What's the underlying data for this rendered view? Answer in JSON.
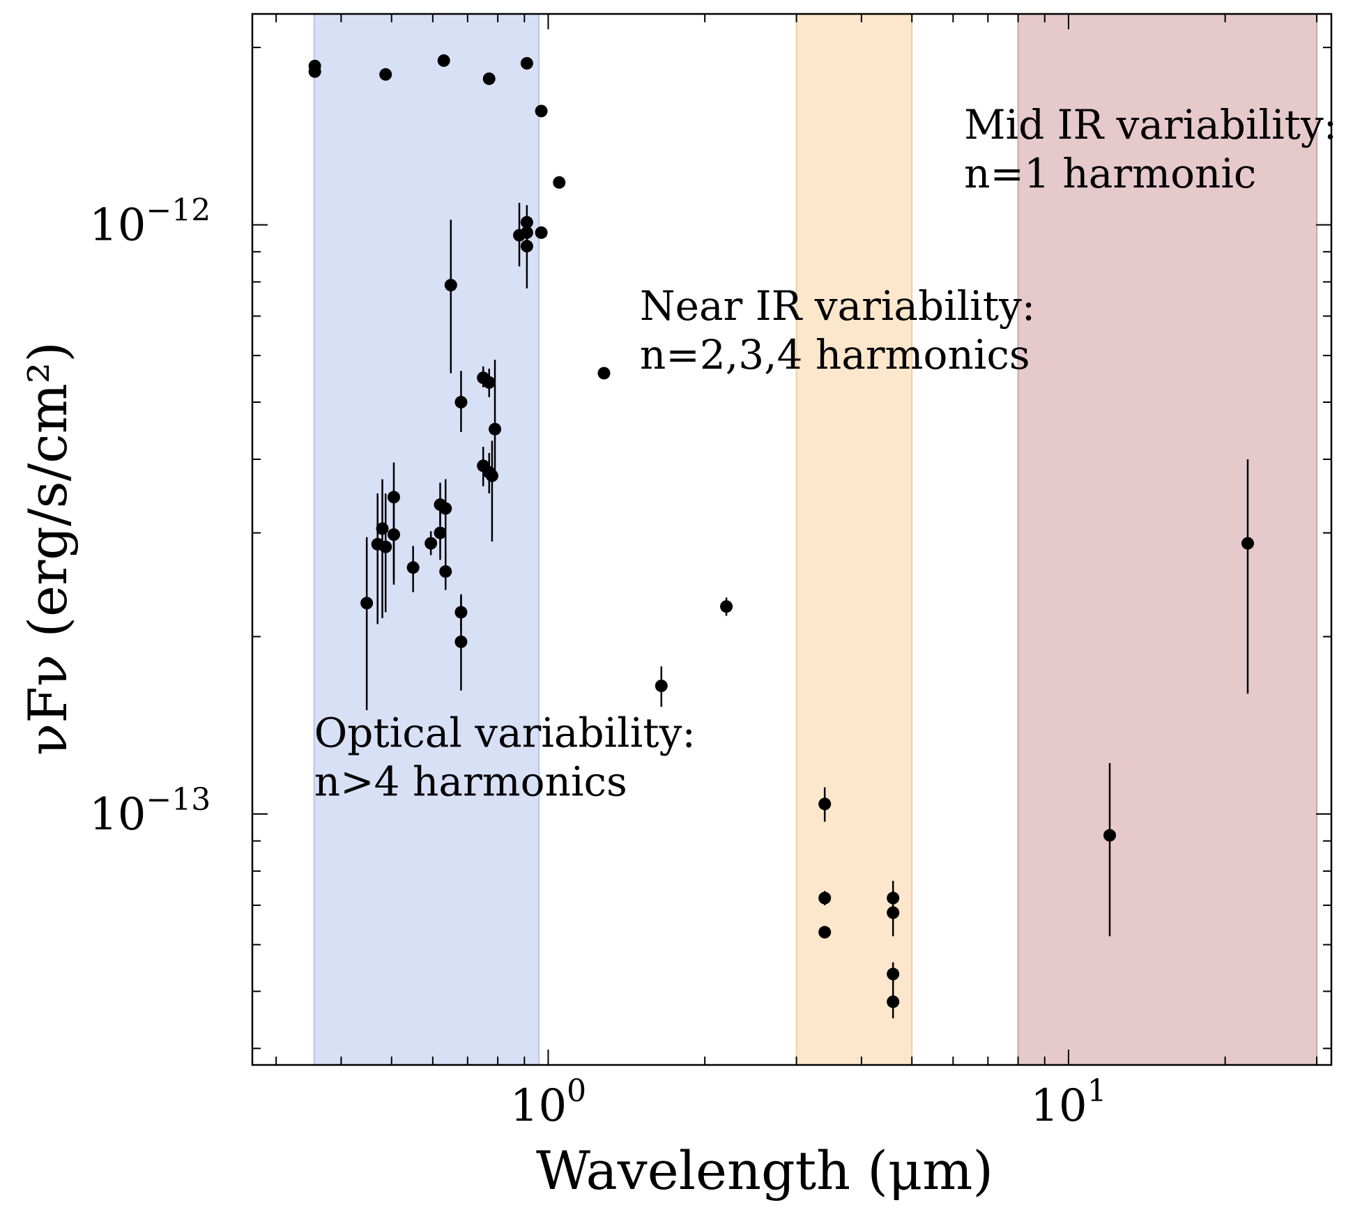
{
  "chart_data": {
    "type": "scatter",
    "title": "",
    "xlabel": "Wavelength (μm)",
    "ylabel": "νFν (erg/s/cm²)",
    "x_scale": "log",
    "y_scale": "log",
    "xlim": [
      0.27,
      32
    ],
    "ylim": [
      3.75e-14,
      2.28e-12
    ],
    "x_ticks": [
      {
        "value": 1,
        "base": "10",
        "exp": "0"
      },
      {
        "value": 10,
        "base": "10",
        "exp": "1"
      }
    ],
    "y_ticks": [
      {
        "value": 1e-13,
        "base": "10",
        "exp": "−13"
      },
      {
        "value": 1e-12,
        "base": "10",
        "exp": "−12"
      }
    ],
    "bands": [
      {
        "name": "optical",
        "x0": 0.355,
        "x1": 0.96,
        "color": "#d8e0f6",
        "edge": "#b7c4ee"
      },
      {
        "name": "near-ir",
        "x0": 3.0,
        "x1": 5.0,
        "color": "#fde7cc",
        "edge": "#f3cf9e"
      },
      {
        "name": "mid-ir",
        "x0": 8.0,
        "x1": 30.0,
        "color": "#e6c9cb",
        "edge": "#c9a6a8"
      }
    ],
    "annotations": [
      {
        "lines": [
          "Optical variability:",
          "n>4 harmonics"
        ],
        "x": 0.355,
        "y": 1.3e-13
      },
      {
        "lines": [
          "Near IR variability:",
          "n=2,3,4 harmonics"
        ],
        "x": 1.5,
        "y": 6.9e-13
      },
      {
        "lines": [
          "Mid IR variability:",
          "n=1 harmonic"
        ],
        "x": 6.3,
        "y": 1.4e-12
      }
    ],
    "series": [
      {
        "marker_color": "#000000",
        "points": [
          {
            "x": 0.356,
            "y": 1.86e-12
          },
          {
            "x": 0.356,
            "y": 1.82e-12
          },
          {
            "x": 0.487,
            "y": 1.8e-12
          },
          {
            "x": 0.63,
            "y": 1.9e-12
          },
          {
            "x": 0.77,
            "y": 1.77e-12
          },
          {
            "x": 0.91,
            "y": 1.88e-12
          },
          {
            "x": 0.97,
            "y": 1.56e-12
          },
          {
            "x": 1.05,
            "y": 1.18e-12
          },
          {
            "x": 0.88,
            "y": 9.6e-13,
            "yerr": [
              8.5e-13,
              1.09e-12
            ]
          },
          {
            "x": 0.91,
            "y": 1.01e-12,
            "yerr": [
              9.4e-13,
              1.08e-12
            ]
          },
          {
            "x": 0.91,
            "y": 9.7e-13
          },
          {
            "x": 0.91,
            "y": 9.2e-13,
            "yerr": [
              7.8e-13,
              9.9e-13
            ]
          },
          {
            "x": 0.97,
            "y": 9.7e-13
          },
          {
            "x": 0.65,
            "y": 7.9e-13,
            "yerr": [
              5.6e-13,
              1.02e-12
            ]
          },
          {
            "x": 1.28,
            "y": 5.6e-13
          },
          {
            "x": 0.75,
            "y": 5.5e-13,
            "yerr": [
              5.3e-13,
              5.75e-13
            ]
          },
          {
            "x": 0.77,
            "y": 5.4e-13,
            "yerr": [
              5.1e-13,
              5.7e-13
            ]
          },
          {
            "x": 0.68,
            "y": 5e-13,
            "yerr": [
              4.45e-13,
              5.65e-13
            ]
          },
          {
            "x": 0.79,
            "y": 4.5e-13,
            "yerr": [
              3.7e-13,
              5.9e-13
            ]
          },
          {
            "x": 0.75,
            "y": 3.9e-13,
            "yerr": [
              3.6e-13,
              4.2e-13
            ]
          },
          {
            "x": 0.77,
            "y": 3.8e-13,
            "yerr": [
              3.5e-13,
              4.1e-13
            ]
          },
          {
            "x": 0.78,
            "y": 3.75e-13,
            "yerr": [
              2.9e-13,
              4.3e-13
            ]
          },
          {
            "x": 0.505,
            "y": 3.45e-13,
            "yerr": [
              2.5e-13,
              3.95e-13
            ]
          },
          {
            "x": 0.62,
            "y": 3.35e-13,
            "yerr": [
              3.1e-13,
              3.65e-13
            ]
          },
          {
            "x": 0.635,
            "y": 3.3e-13,
            "yerr": [
              2.7e-13,
              3.7e-13
            ]
          },
          {
            "x": 0.48,
            "y": 3.05e-13,
            "yerr": [
              2.15e-13,
              3.7e-13
            ]
          },
          {
            "x": 0.62,
            "y": 3e-13,
            "yerr": [
              2.7e-13,
              3.3e-13
            ]
          },
          {
            "x": 0.505,
            "y": 2.98e-13,
            "yerr": [
              2.45e-13,
              3.4e-13
            ]
          },
          {
            "x": 0.595,
            "y": 2.88e-13,
            "yerr": [
              2.75e-13,
              3.02e-13
            ]
          },
          {
            "x": 0.47,
            "y": 2.87e-13,
            "yerr": [
              2.1e-13,
              3.5e-13
            ]
          },
          {
            "x": 0.487,
            "y": 2.84e-13,
            "yerr": [
              2.2e-13,
              3.5e-13
            ]
          },
          {
            "x": 0.55,
            "y": 2.62e-13,
            "yerr": [
              2.38e-13,
              2.85e-13
            ]
          },
          {
            "x": 0.635,
            "y": 2.58e-13,
            "yerr": [
              2.4e-13,
              2.75e-13
            ]
          },
          {
            "x": 0.448,
            "y": 2.28e-13,
            "yerr": [
              1.5e-13,
              2.95e-13
            ]
          },
          {
            "x": 0.68,
            "y": 2.2e-13,
            "yerr": [
              2.05e-13,
              2.36e-13
            ]
          },
          {
            "x": 2.2,
            "y": 2.25e-13,
            "yerr": [
              2.17e-13,
              2.33e-13
            ]
          },
          {
            "x": 0.68,
            "y": 1.96e-13,
            "yerr": [
              1.62e-13,
              2.35e-13
            ]
          },
          {
            "x": 1.65,
            "y": 1.65e-13,
            "yerr": [
              1.52e-13,
              1.78e-13
            ]
          },
          {
            "x": 22.1,
            "y": 2.88e-13,
            "yerr": [
              1.6e-13,
              4e-13
            ]
          },
          {
            "x": 12.0,
            "y": 9.2e-14,
            "yerr": [
              6.2e-14,
              1.22e-13
            ]
          },
          {
            "x": 3.4,
            "y": 1.04e-13,
            "yerr": [
              9.7e-14,
              1.11e-13
            ]
          },
          {
            "x": 3.4,
            "y": 7.2e-14,
            "yerr": [
              7e-14,
              7.4e-14
            ]
          },
          {
            "x": 3.4,
            "y": 6.3e-14,
            "yerr": [
              6.15e-14,
              6.45e-14
            ]
          },
          {
            "x": 4.6,
            "y": 7.2e-14,
            "yerr": [
              6.7e-14,
              7.7e-14
            ]
          },
          {
            "x": 4.6,
            "y": 6.8e-14,
            "yerr": [
              6.2e-14,
              7.4e-14
            ]
          },
          {
            "x": 4.6,
            "y": 5.35e-14,
            "yerr": [
              5.1e-14,
              5.6e-14
            ]
          },
          {
            "x": 4.6,
            "y": 4.8e-14,
            "yerr": [
              4.5e-14,
              5.1e-14
            ]
          }
        ]
      }
    ]
  }
}
